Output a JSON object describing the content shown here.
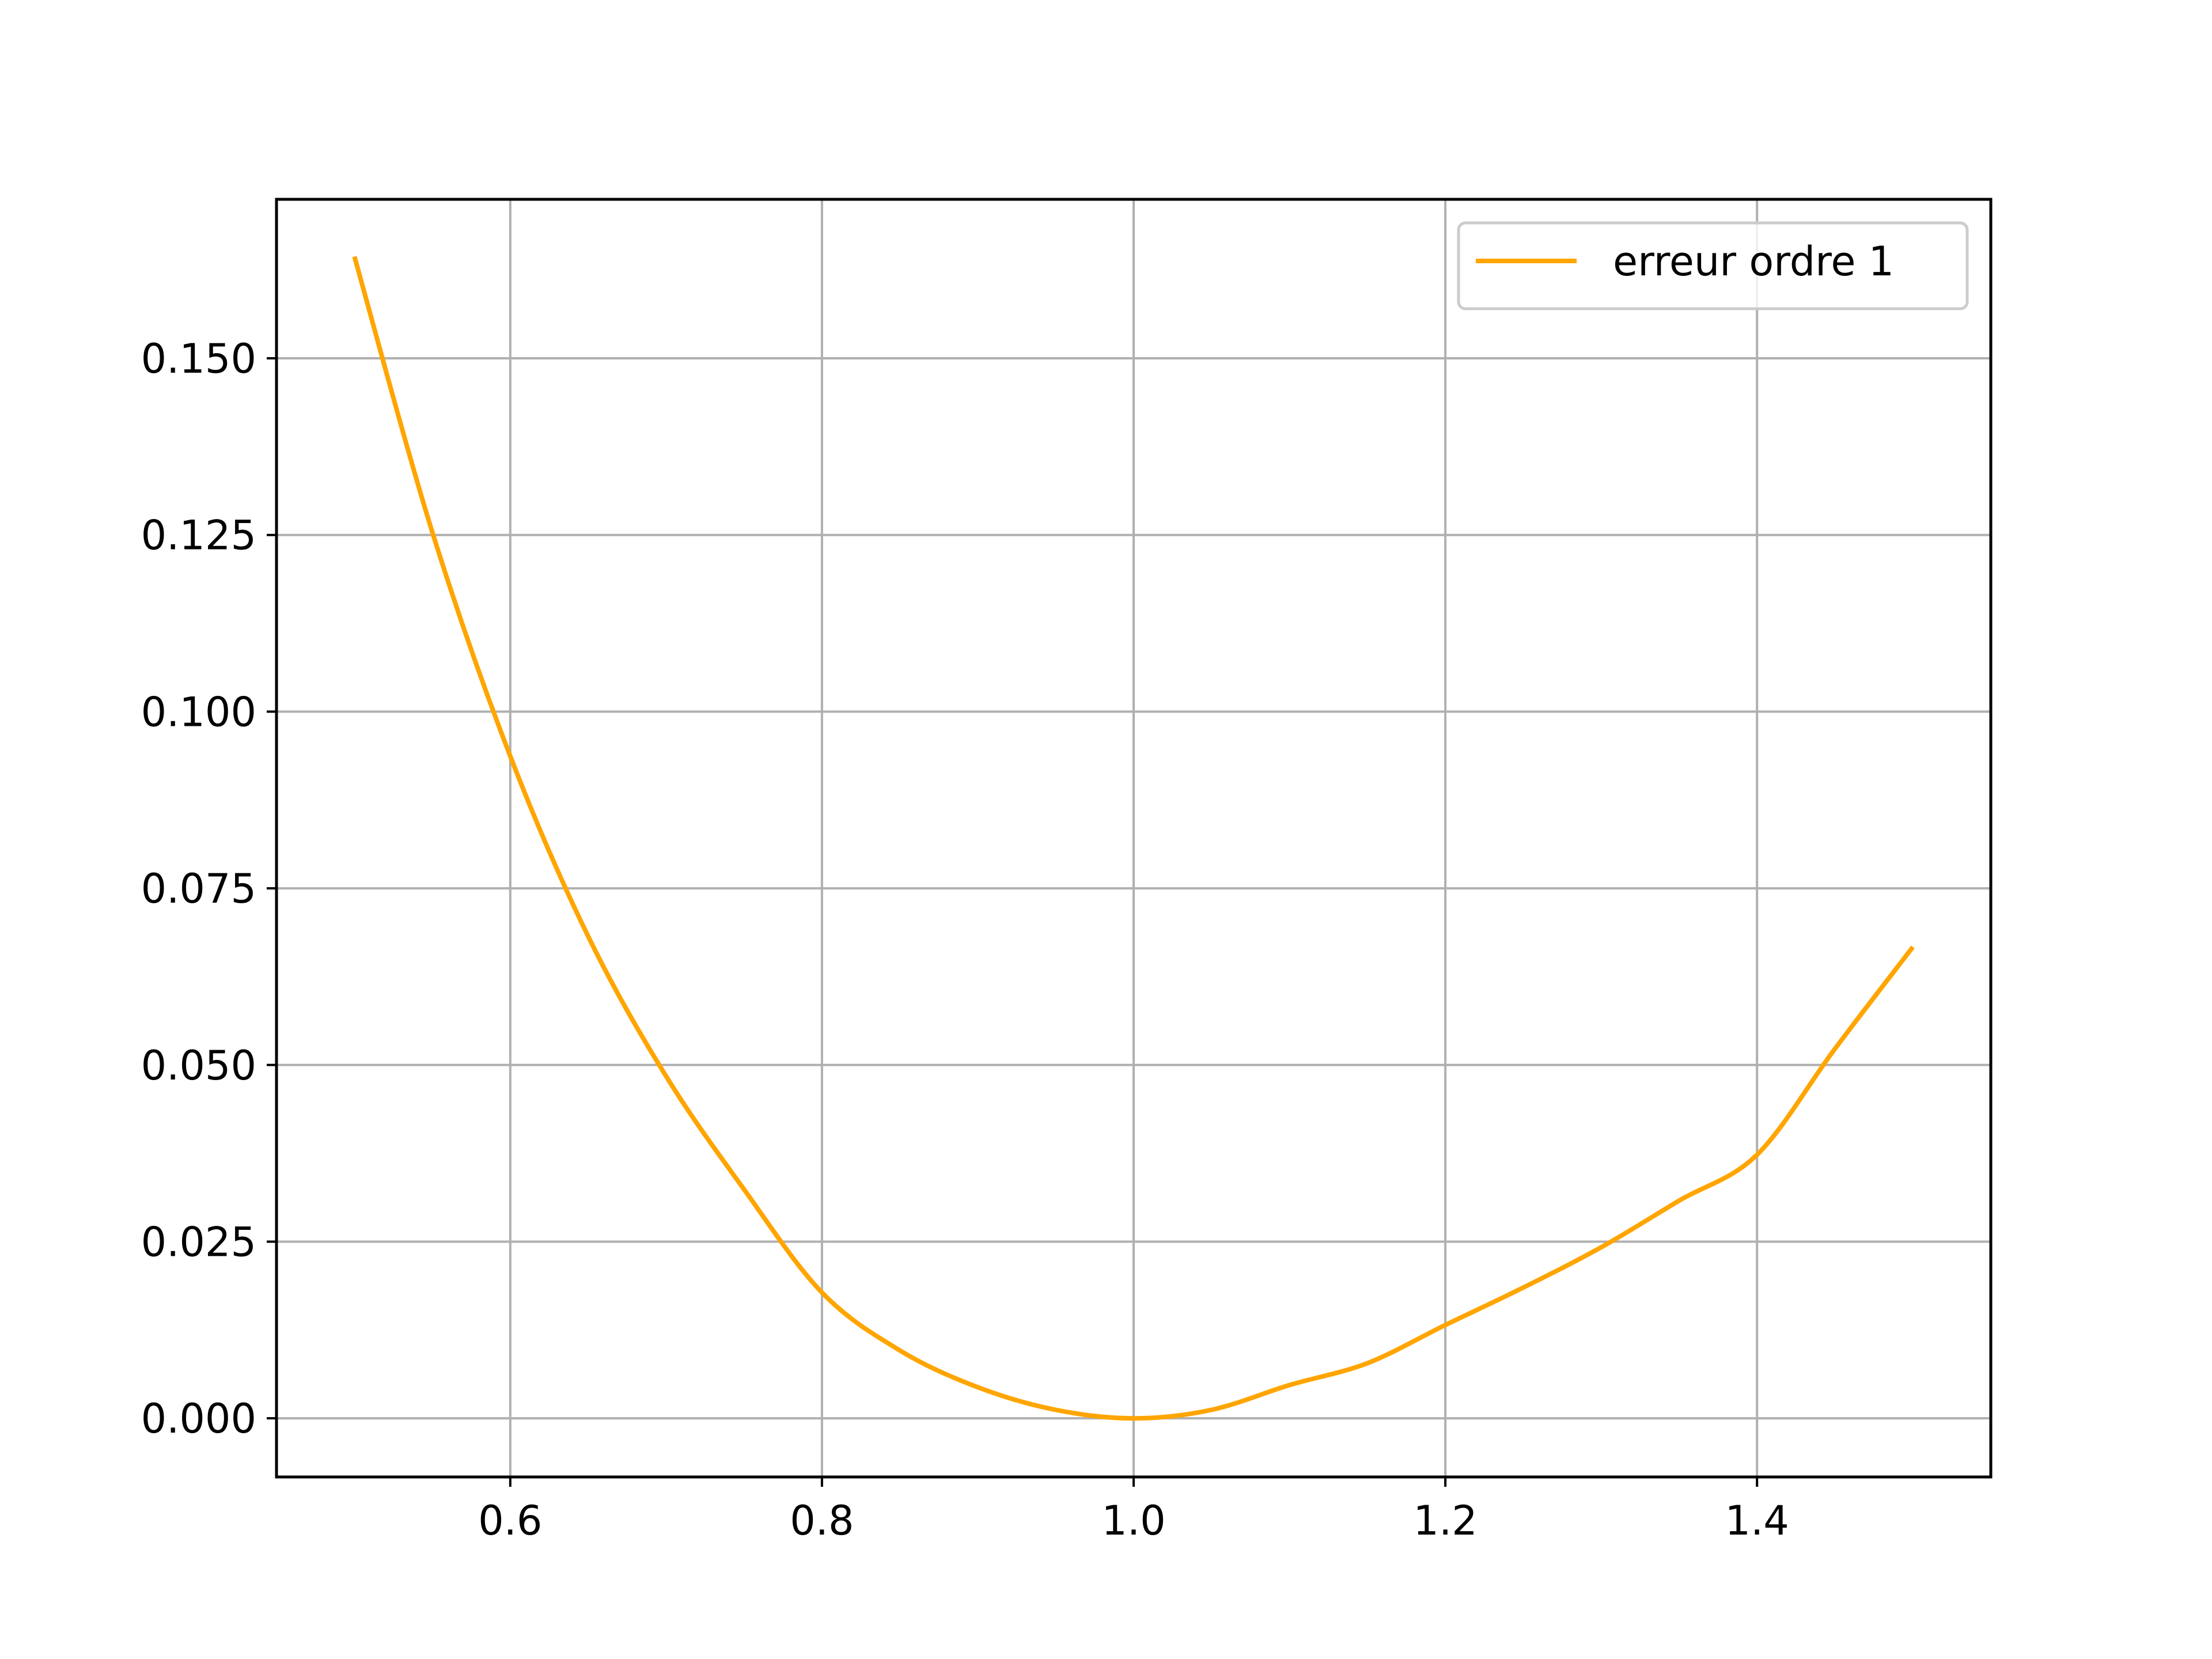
{
  "chart_data": {
    "type": "line",
    "title": "",
    "xlabel": "",
    "ylabel": "",
    "xlim": [
      0.45,
      1.55
    ],
    "ylim": [
      -0.0083,
      0.1725
    ],
    "xticks": [
      "0.6",
      "0.8",
      "1.0",
      "1.2",
      "1.4"
    ],
    "yticks": [
      "0.000",
      "0.025",
      "0.050",
      "0.075",
      "0.100",
      "0.125",
      "0.150"
    ],
    "grid": true,
    "legend_position": "top-right",
    "series": [
      {
        "name": "erreur ordre 1",
        "color": "#ffa500",
        "x": [
          0.5,
          0.55,
          0.6,
          0.65,
          0.7,
          0.75,
          0.8,
          0.85,
          0.9,
          0.95,
          1.0,
          1.05,
          1.1,
          1.15,
          1.2,
          1.25,
          1.3,
          1.35,
          1.4,
          1.45,
          1.5
        ],
        "y": [
          0.1644,
          0.1254,
          0.0937,
          0.0682,
          0.0484,
          0.0324,
          0.0178,
          0.0096,
          0.0044,
          0.0012,
          0.0,
          0.0012,
          0.0047,
          0.0078,
          0.0132,
          0.0185,
          0.0242,
          0.0308,
          0.0373,
          0.0523,
          0.0667
        ]
      }
    ]
  }
}
